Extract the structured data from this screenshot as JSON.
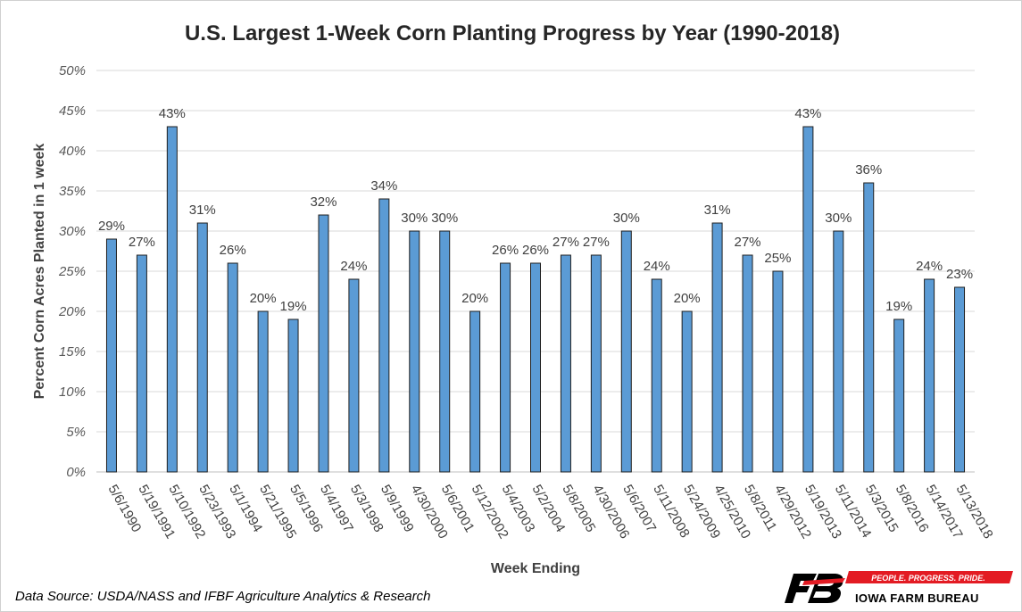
{
  "chart_data": {
    "type": "bar",
    "title": "U.S. Largest 1-Week Corn Planting Progress by Year (1990-2018)",
    "xlabel": "Week Ending",
    "ylabel": "Percent Corn Acres Planted in 1 week",
    "ylim": [
      0,
      50
    ],
    "ytick_step": 5,
    "ytick_format": "%",
    "grid": true,
    "legend": "none",
    "categories": [
      "5/6/1990",
      "5/19/1991",
      "5/10/1992",
      "5/23/1993",
      "5/1/1994",
      "5/21/1995",
      "5/5/1996",
      "5/4/1997",
      "5/3/1998",
      "5/9/1999",
      "4/30/2000",
      "5/6/2001",
      "5/12/2002",
      "5/4/2003",
      "5/2/2004",
      "5/8/2005",
      "4/30/2006",
      "5/6/2007",
      "5/11/2008",
      "5/24/2009",
      "4/25/2010",
      "5/8/2011",
      "4/29/2012",
      "5/19/2013",
      "5/11/2014",
      "5/3/2015",
      "5/8/2016",
      "5/14/2017",
      "5/13/2018"
    ],
    "values": [
      29,
      27,
      43,
      31,
      26,
      20,
      19,
      32,
      24,
      34,
      30,
      30,
      20,
      26,
      26,
      27,
      27,
      30,
      24,
      20,
      31,
      27,
      25,
      43,
      30,
      36,
      19,
      24,
      23
    ],
    "bar_color": "#5b9bd5",
    "data_labels_suffix": "%"
  },
  "footer": {
    "source": "Data Source: USDA/NASS and IFBF Agriculture Analytics & Research"
  },
  "logo": {
    "mark": "FB",
    "banner": "PEOPLE. PROGRESS. PRIDE.",
    "name": "IOWA FARM BUREAU",
    "red": "#e31b23"
  }
}
